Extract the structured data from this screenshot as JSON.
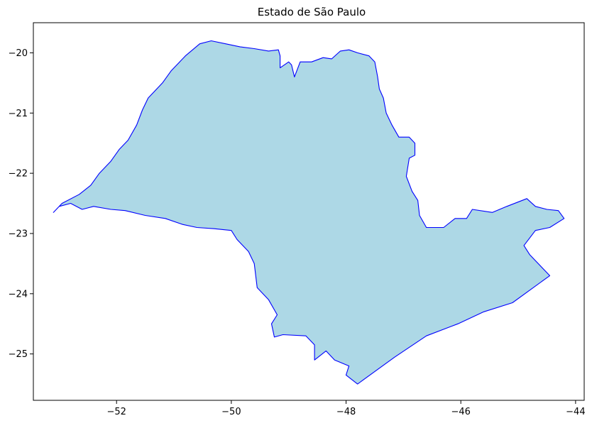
{
  "title": "Estado de São Paulo",
  "chart_data": {
    "type": "map",
    "title": "Estado de São Paulo",
    "xlabel": "",
    "ylabel": "",
    "xlim": [
      -53.45,
      -43.85
    ],
    "ylim": [
      -25.77,
      -19.5
    ],
    "x_ticks": [
      -52,
      -50,
      -48,
      -46,
      -44
    ],
    "y_ticks": [
      -20,
      -21,
      -22,
      -23,
      -24,
      -25
    ],
    "x_tick_labels": [
      "−52",
      "−50",
      "−48",
      "−46",
      "−44"
    ],
    "y_tick_labels": [
      "−20",
      "−21",
      "−22",
      "−23",
      "−24",
      "−25"
    ],
    "grid": false,
    "fill_color": "#add8e6",
    "edge_color": "#0000ff",
    "boundary": [
      [
        -53.1,
        -22.65
      ],
      [
        -52.95,
        -22.5
      ],
      [
        -52.65,
        -22.35
      ],
      [
        -52.45,
        -22.2
      ],
      [
        -52.3,
        -22.0
      ],
      [
        -52.1,
        -21.8
      ],
      [
        -51.95,
        -21.6
      ],
      [
        -51.8,
        -21.45
      ],
      [
        -51.65,
        -21.2
      ],
      [
        -51.55,
        -20.95
      ],
      [
        -51.45,
        -20.75
      ],
      [
        -51.2,
        -20.5
      ],
      [
        -51.05,
        -20.3
      ],
      [
        -50.9,
        -20.15
      ],
      [
        -50.8,
        -20.05
      ],
      [
        -50.55,
        -19.85
      ],
      [
        -50.35,
        -19.8
      ],
      [
        -50.1,
        -19.85
      ],
      [
        -49.85,
        -19.9
      ],
      [
        -49.6,
        -19.93
      ],
      [
        -49.35,
        -19.97
      ],
      [
        -49.18,
        -19.95
      ],
      [
        -49.15,
        -20.05
      ],
      [
        -49.15,
        -20.25
      ],
      [
        -49.0,
        -20.15
      ],
      [
        -48.95,
        -20.2
      ],
      [
        -48.9,
        -20.4
      ],
      [
        -48.8,
        -20.15
      ],
      [
        -48.6,
        -20.15
      ],
      [
        -48.4,
        -20.08
      ],
      [
        -48.25,
        -20.1
      ],
      [
        -48.1,
        -19.97
      ],
      [
        -47.95,
        -19.95
      ],
      [
        -47.8,
        -20.0
      ],
      [
        -47.6,
        -20.05
      ],
      [
        -47.5,
        -20.15
      ],
      [
        -47.45,
        -20.4
      ],
      [
        -47.42,
        -20.6
      ],
      [
        -47.35,
        -20.75
      ],
      [
        -47.3,
        -21.0
      ],
      [
        -47.2,
        -21.2
      ],
      [
        -47.08,
        -21.4
      ],
      [
        -46.9,
        -21.4
      ],
      [
        -46.8,
        -21.5
      ],
      [
        -46.8,
        -21.7
      ],
      [
        -46.9,
        -21.75
      ],
      [
        -46.95,
        -22.05
      ],
      [
        -46.85,
        -22.3
      ],
      [
        -46.75,
        -22.45
      ],
      [
        -46.72,
        -22.7
      ],
      [
        -46.6,
        -22.9
      ],
      [
        -46.3,
        -22.9
      ],
      [
        -46.1,
        -22.75
      ],
      [
        -45.9,
        -22.75
      ],
      [
        -45.8,
        -22.6
      ],
      [
        -45.45,
        -22.65
      ],
      [
        -45.2,
        -22.55
      ],
      [
        -44.85,
        -22.42
      ],
      [
        -44.7,
        -22.55
      ],
      [
        -44.5,
        -22.6
      ],
      [
        -44.3,
        -22.62
      ],
      [
        -44.2,
        -22.75
      ],
      [
        -44.45,
        -22.9
      ],
      [
        -44.7,
        -22.95
      ],
      [
        -44.9,
        -23.2
      ],
      [
        -44.8,
        -23.35
      ],
      [
        -44.45,
        -23.7
      ],
      [
        -45.1,
        -24.15
      ],
      [
        -45.6,
        -24.3
      ],
      [
        -46.05,
        -24.5
      ],
      [
        -46.6,
        -24.7
      ],
      [
        -47.15,
        -25.05
      ],
      [
        -47.8,
        -25.5
      ],
      [
        -48.0,
        -25.35
      ],
      [
        -47.95,
        -25.2
      ],
      [
        -48.2,
        -25.1
      ],
      [
        -48.35,
        -24.95
      ],
      [
        -48.55,
        -25.1
      ],
      [
        -48.55,
        -24.85
      ],
      [
        -48.7,
        -24.7
      ],
      [
        -49.1,
        -24.68
      ],
      [
        -49.25,
        -24.72
      ],
      [
        -49.3,
        -24.5
      ],
      [
        -49.2,
        -24.35
      ],
      [
        -49.35,
        -24.1
      ],
      [
        -49.55,
        -23.9
      ],
      [
        -49.6,
        -23.5
      ],
      [
        -49.7,
        -23.3
      ],
      [
        -49.9,
        -23.1
      ],
      [
        -50.0,
        -22.95
      ],
      [
        -50.3,
        -22.92
      ],
      [
        -50.6,
        -22.9
      ],
      [
        -50.85,
        -22.85
      ],
      [
        -51.15,
        -22.75
      ],
      [
        -51.5,
        -22.7
      ],
      [
        -51.85,
        -22.62
      ],
      [
        -52.1,
        -22.6
      ],
      [
        -52.4,
        -22.55
      ],
      [
        -52.6,
        -22.6
      ],
      [
        -52.8,
        -22.5
      ],
      [
        -53.0,
        -22.55
      ],
      [
        -53.1,
        -22.65
      ]
    ]
  }
}
